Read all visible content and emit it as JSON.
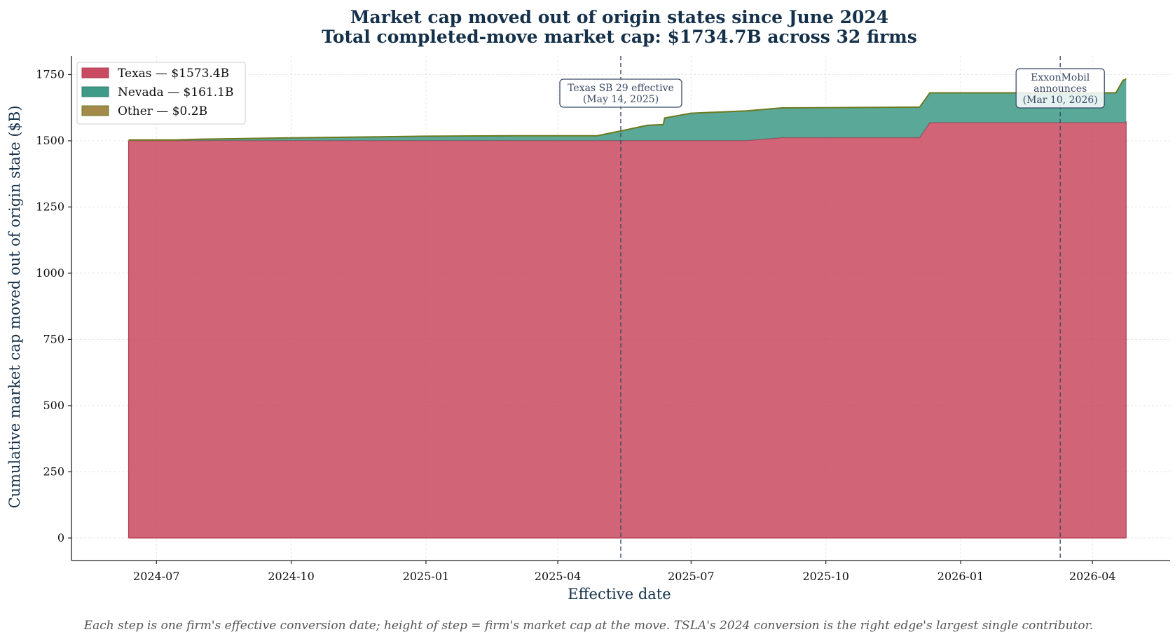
{
  "colors": {
    "title": "#14304a",
    "texas": "#c94b61",
    "texas_edge": "#b23a50",
    "nevada": "#3f9a87",
    "nevada_edge": "#2d7f6b",
    "other": "#a48a4a",
    "other_edge": "#6b7a1f",
    "annotation": "#3a4a66",
    "grid": "#e4e4e4",
    "footer": "#555555"
  },
  "chart_data": {
    "type": "area",
    "stacked": true,
    "title": "Market cap moved out of origin states since June 2024",
    "subtitle": "Total completed-move market cap: $1734.7B across 32 firms",
    "xlabel": "Effective date",
    "ylabel": "Cumulative market cap moved out of origin state ($B)",
    "x_axis_type": "date",
    "x_ticks": [
      "2024-07",
      "2024-10",
      "2025-01",
      "2025-04",
      "2025-07",
      "2025-10",
      "2026-01",
      "2026-04"
    ],
    "y_ticks": [
      0,
      250,
      500,
      750,
      1000,
      1250,
      1500,
      1750
    ],
    "ylim": [
      -85,
      1820
    ],
    "xlim": [
      "2024-05-04",
      "2026-05-24"
    ],
    "grid": true,
    "legend_position": "top-left",
    "legend": [
      "Texas — $1573.4B",
      "Nevada — $161.1B",
      "Other — $0.2B"
    ],
    "series": [
      {
        "name": "Texas — $1573.4B",
        "color": "#c94b61",
        "points": [
          [
            "2024-06-12",
            1501
          ],
          [
            "2025-08-08",
            1501
          ],
          [
            "2025-09-01",
            1512
          ],
          [
            "2025-12-04",
            1512
          ],
          [
            "2025-12-11",
            1569
          ],
          [
            "2026-04-23",
            1569
          ],
          [
            "2026-04-24",
            1573.4
          ]
        ]
      },
      {
        "name": "Nevada — $161.1B",
        "color": "#3f9a87",
        "points": [
          [
            "2024-06-12",
            2
          ],
          [
            "2024-07-15",
            2
          ],
          [
            "2024-08-01",
            5
          ],
          [
            "2024-10-01",
            10
          ],
          [
            "2024-11-01",
            12
          ],
          [
            "2024-12-01",
            14
          ],
          [
            "2025-01-01",
            16
          ],
          [
            "2025-03-01",
            18
          ],
          [
            "2025-04-28",
            18
          ],
          [
            "2025-05-14",
            36
          ],
          [
            "2025-06-01",
            57
          ],
          [
            "2025-06-12",
            60
          ],
          [
            "2025-06-13",
            85
          ],
          [
            "2025-07-01",
            103
          ],
          [
            "2025-08-08",
            112
          ],
          [
            "2025-09-01",
            112
          ],
          [
            "2025-12-04",
            115
          ],
          [
            "2025-12-11",
            112
          ],
          [
            "2026-04-17",
            112
          ],
          [
            "2026-04-22",
            160
          ],
          [
            "2026-04-24",
            161.1
          ]
        ]
      },
      {
        "name": "Other — $0.2B",
        "color": "#a48a4a",
        "points": [
          [
            "2024-06-12",
            0.2
          ],
          [
            "2026-04-24",
            0.2
          ]
        ]
      }
    ],
    "annotations": [
      {
        "date": "2025-05-14",
        "lines": [
          "Texas SB 29 effective",
          "(May 14, 2025)"
        ]
      },
      {
        "date": "2026-03-10",
        "lines": [
          "ExxonMobil",
          "announces",
          "(Mar 10, 2026)"
        ]
      }
    ]
  },
  "footer": {
    "note": "Each step is one firm's effective conversion date; height of step = firm's market cap at the move. TSLA's 2024 conversion is the right edge's largest single contributor."
  }
}
